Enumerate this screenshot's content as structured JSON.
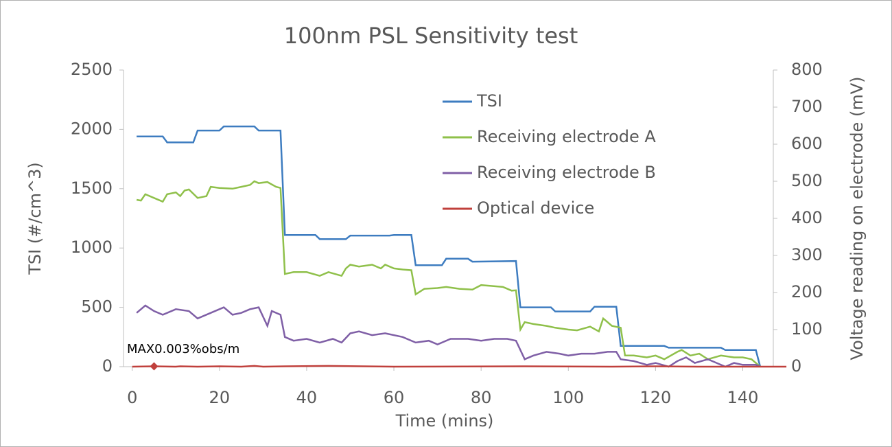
{
  "chart_data": {
    "type": "line",
    "title": "100nm PSL  Sensitivity test",
    "x_label": "Time (mins)",
    "y_label": "TSI  (#/cm^3)",
    "y2_label": "Voltage reading on electrode (mV)",
    "annotation": "MAX0.003%obs/m",
    "xlim": [
      -2,
      147
    ],
    "xticks": [
      0,
      20,
      40,
      60,
      80,
      100,
      120,
      140
    ],
    "ylim": [
      0,
      2500
    ],
    "yticks": [
      0,
      500,
      1000,
      1500,
      2000,
      2500
    ],
    "y2lim": [
      0,
      800
    ],
    "y2ticks": [
      0,
      100,
      200,
      300,
      400,
      500,
      600,
      700,
      800
    ],
    "grid": false,
    "legend": "upper-right",
    "series": [
      {
        "name": "TSI",
        "color": "#3d7cc0",
        "axis": "y",
        "x": [
          1,
          7,
          8,
          14,
          15,
          20,
          21,
          28,
          29,
          34,
          35,
          42,
          43,
          49,
          50,
          59,
          60,
          64,
          65,
          71,
          72,
          77,
          78,
          88,
          89,
          96,
          97,
          105,
          106,
          111,
          112,
          122,
          123,
          135,
          136,
          143,
          144
        ],
        "values": [
          1940,
          1940,
          1890,
          1890,
          1990,
          1990,
          2025,
          2025,
          1990,
          1990,
          1110,
          1110,
          1075,
          1075,
          1105,
          1105,
          1110,
          1110,
          855,
          855,
          910,
          910,
          885,
          890,
          500,
          500,
          465,
          465,
          505,
          505,
          175,
          175,
          160,
          160,
          140,
          140,
          0
        ]
      },
      {
        "name": "Receiving electrode A",
        "color": "#8fc04a",
        "axis": "y2",
        "x": [
          1,
          2,
          3,
          5,
          7,
          8,
          10,
          11,
          12,
          13,
          15,
          17,
          18,
          20,
          23,
          25,
          27,
          28,
          29,
          31,
          33,
          34,
          35,
          37,
          40,
          43,
          45,
          48,
          49,
          50,
          52,
          55,
          57,
          58,
          60,
          62,
          64,
          65,
          67,
          70,
          72,
          75,
          78,
          80,
          82,
          85,
          87,
          88,
          89,
          90,
          92,
          95,
          97,
          100,
          102,
          105,
          107,
          108,
          110,
          112,
          113,
          115,
          118,
          120,
          122,
          125,
          126,
          128,
          130,
          132,
          135,
          138,
          140,
          142,
          143,
          144
        ],
        "values": [
          450,
          448,
          465,
          455,
          445,
          465,
          470,
          460,
          475,
          478,
          455,
          460,
          485,
          482,
          480,
          485,
          490,
          500,
          495,
          498,
          485,
          482,
          250,
          255,
          255,
          245,
          255,
          245,
          265,
          275,
          270,
          275,
          265,
          275,
          265,
          262,
          260,
          195,
          210,
          212,
          215,
          210,
          208,
          220,
          218,
          215,
          205,
          206,
          100,
          120,
          115,
          110,
          105,
          100,
          98,
          108,
          95,
          130,
          110,
          105,
          30,
          30,
          25,
          30,
          20,
          40,
          45,
          30,
          35,
          20,
          30,
          25,
          25,
          20,
          10,
          0
        ]
      },
      {
        "name": "Receiving electrode B",
        "color": "#7f5fa6",
        "axis": "y2",
        "x": [
          1,
          3,
          5,
          7,
          10,
          13,
          15,
          18,
          21,
          23,
          25,
          27,
          29,
          31,
          32,
          34,
          35,
          37,
          40,
          43,
          46,
          48,
          50,
          52,
          55,
          58,
          62,
          65,
          68,
          70,
          73,
          77,
          80,
          83,
          86,
          88,
          90,
          92,
          95,
          98,
          100,
          103,
          106,
          109,
          111,
          112,
          115,
          118,
          120,
          123,
          125,
          127,
          129,
          132,
          134,
          136,
          138,
          140,
          143,
          144
        ],
        "values": [
          145,
          165,
          150,
          140,
          155,
          150,
          130,
          145,
          160,
          140,
          145,
          155,
          160,
          110,
          150,
          140,
          80,
          70,
          75,
          65,
          75,
          65,
          90,
          95,
          85,
          90,
          80,
          65,
          70,
          60,
          75,
          75,
          70,
          75,
          75,
          70,
          20,
          30,
          40,
          35,
          30,
          35,
          35,
          40,
          40,
          20,
          15,
          5,
          10,
          0,
          15,
          25,
          10,
          20,
          10,
          0,
          10,
          5,
          5,
          0
        ]
      },
      {
        "name": "Optical device",
        "color": "#c0403c",
        "axis": "y2",
        "x": [
          0,
          5,
          10,
          11,
          15,
          20,
          25,
          28,
          30,
          35,
          45,
          60,
          90,
          110,
          120,
          130,
          140,
          150
        ],
        "values": [
          0,
          1,
          0,
          1,
          0,
          1,
          0,
          2,
          0,
          1,
          2,
          0,
          1,
          0,
          1,
          0,
          0,
          0
        ]
      }
    ]
  }
}
